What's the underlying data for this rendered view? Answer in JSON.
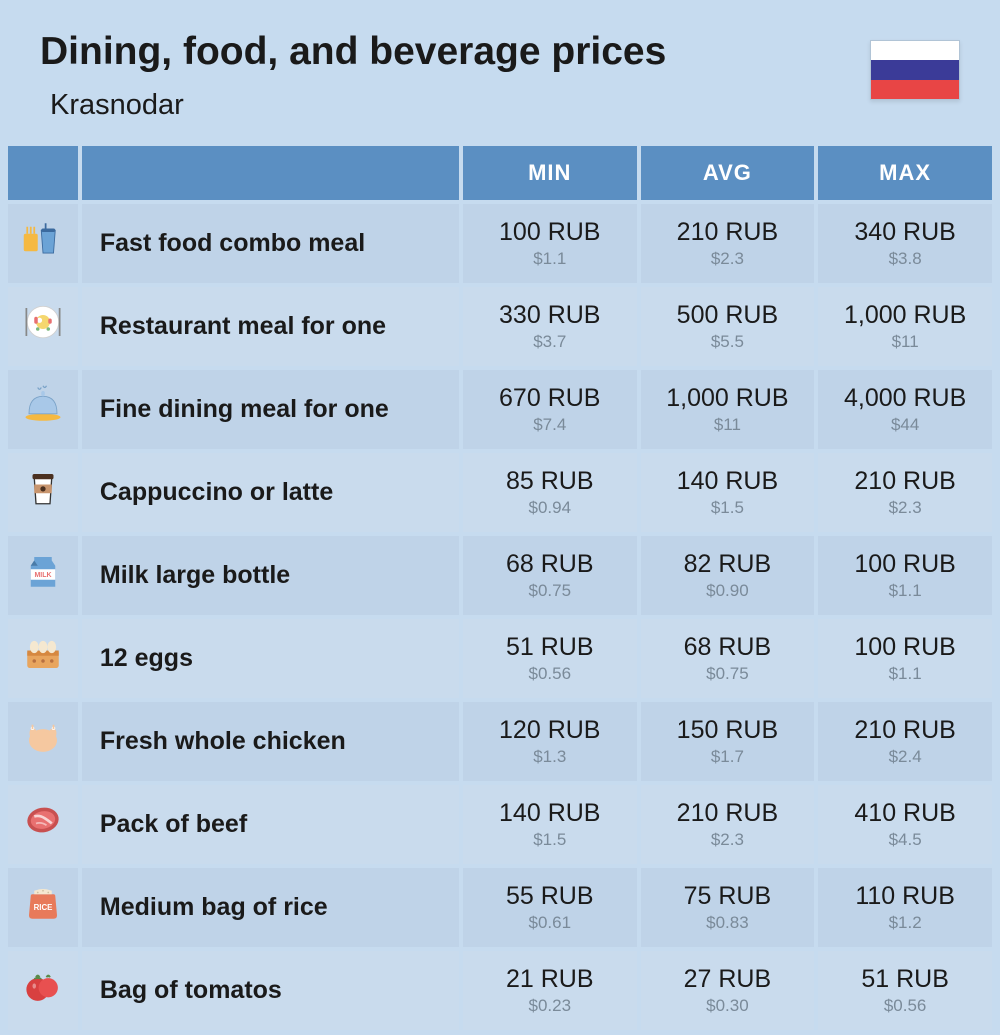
{
  "header": {
    "title": "Dining, food, and beverage prices",
    "subtitle": "Krasnodar",
    "flag_colors": [
      "#ffffff",
      "#3b3b98",
      "#e84545"
    ]
  },
  "table": {
    "columns": [
      "",
      "",
      "MIN",
      "AVG",
      "MAX"
    ],
    "header_bg": "#5b8fc2",
    "header_text_color": "#ffffff",
    "row_odd_bg": "#bfd3e8",
    "row_even_bg": "#c9dbed",
    "price_main_color": "#1a1a1a",
    "price_sub_color": "#7a8a99",
    "rows": [
      {
        "icon": "fastfood",
        "label": "Fast food combo meal",
        "min": {
          "rub": "100 RUB",
          "usd": "$1.1"
        },
        "avg": {
          "rub": "210 RUB",
          "usd": "$2.3"
        },
        "max": {
          "rub": "340 RUB",
          "usd": "$3.8"
        }
      },
      {
        "icon": "restaurant",
        "label": "Restaurant meal for one",
        "min": {
          "rub": "330 RUB",
          "usd": "$3.7"
        },
        "avg": {
          "rub": "500 RUB",
          "usd": "$5.5"
        },
        "max": {
          "rub": "1,000 RUB",
          "usd": "$11"
        }
      },
      {
        "icon": "finedining",
        "label": "Fine dining meal for one",
        "min": {
          "rub": "670 RUB",
          "usd": "$7.4"
        },
        "avg": {
          "rub": "1,000 RUB",
          "usd": "$11"
        },
        "max": {
          "rub": "4,000 RUB",
          "usd": "$44"
        }
      },
      {
        "icon": "coffee",
        "label": "Cappuccino or latte",
        "min": {
          "rub": "85 RUB",
          "usd": "$0.94"
        },
        "avg": {
          "rub": "140 RUB",
          "usd": "$1.5"
        },
        "max": {
          "rub": "210 RUB",
          "usd": "$2.3"
        }
      },
      {
        "icon": "milk",
        "label": "Milk large bottle",
        "min": {
          "rub": "68 RUB",
          "usd": "$0.75"
        },
        "avg": {
          "rub": "82 RUB",
          "usd": "$0.90"
        },
        "max": {
          "rub": "100 RUB",
          "usd": "$1.1"
        }
      },
      {
        "icon": "eggs",
        "label": "12 eggs",
        "min": {
          "rub": "51 RUB",
          "usd": "$0.56"
        },
        "avg": {
          "rub": "68 RUB",
          "usd": "$0.75"
        },
        "max": {
          "rub": "100 RUB",
          "usd": "$1.1"
        }
      },
      {
        "icon": "chicken",
        "label": "Fresh whole chicken",
        "min": {
          "rub": "120 RUB",
          "usd": "$1.3"
        },
        "avg": {
          "rub": "150 RUB",
          "usd": "$1.7"
        },
        "max": {
          "rub": "210 RUB",
          "usd": "$2.4"
        }
      },
      {
        "icon": "beef",
        "label": "Pack of beef",
        "min": {
          "rub": "140 RUB",
          "usd": "$1.5"
        },
        "avg": {
          "rub": "210 RUB",
          "usd": "$2.3"
        },
        "max": {
          "rub": "410 RUB",
          "usd": "$4.5"
        }
      },
      {
        "icon": "rice",
        "label": "Medium bag of rice",
        "min": {
          "rub": "55 RUB",
          "usd": "$0.61"
        },
        "avg": {
          "rub": "75 RUB",
          "usd": "$0.83"
        },
        "max": {
          "rub": "110 RUB",
          "usd": "$1.2"
        }
      },
      {
        "icon": "tomato",
        "label": "Bag of tomatos",
        "min": {
          "rub": "21 RUB",
          "usd": "$0.23"
        },
        "avg": {
          "rub": "27 RUB",
          "usd": "$0.30"
        },
        "max": {
          "rub": "51 RUB",
          "usd": "$0.56"
        }
      }
    ]
  },
  "icons": {
    "fastfood": "<svg viewBox='0 0 48 48'><rect x='2' y='18' width='16' height='20' rx='2' fill='#f5b942'/><rect x='5' y='10' width='2' height='8' fill='#f5b942'/><rect x='9' y='10' width='2' height='8' fill='#f5b942'/><rect x='13' y='10' width='2' height='8' fill='#f5b942'/><path d='M22 14 L38 14 L36 40 L24 40 Z' fill='#6ba3d6' stroke='#3b6a9e' stroke-width='1'/><rect x='26' y='6' width='2' height='8' fill='#3b6a9e'/><rect x='22' y='12' width='16' height='4' rx='2' fill='#3b6a9e'/></svg>",
    "restaurant": "<svg viewBox='0 0 48 48'><circle cx='24' cy='24' r='18' fill='#ffffff' stroke='#d0d0d0' stroke-width='1'/><circle cx='24' cy='24' r='8' fill='#f5d76e'/><circle cx='20' cy='22' r='3' fill='#ffffff'/><rect x='14' y='18' width='4' height='8' rx='2' fill='#e87070'/><rect x='30' y='20' width='4' height='6' rx='2' fill='#e87070'/><circle cx='18' cy='32' r='2' fill='#7ab87a'/><circle cx='30' cy='32' r='2' fill='#7ab87a'/><rect x='4' y='8' width='2' height='32' fill='#888'/><rect x='42' y='8' width='2' height='32' fill='#888'/></svg>",
    "finedining": "<svg viewBox='0 0 48 48'><ellipse cx='24' cy='38' rx='20' ry='4' fill='#f5b942'/><path d='M8 34 Q8 14 24 14 Q40 14 40 34 Z' fill='#a8c8e8' stroke='#7ba3c8' stroke-width='1'/><rect x='22' y='8' width='4' height='6' rx='2' fill='#a8c8e8'/><path d='M18 4 Q20 8 22 4' stroke='#7ba3c8' stroke-width='1.5' fill='none'/><path d='M24 2 Q26 6 28 2' stroke='#7ba3c8' stroke-width='1.5' fill='none'/></svg>",
    "coffee": "<svg viewBox='0 0 48 48'><path d='M14 12 L34 12 L32 42 L16 42 Z' fill='#ffffff' stroke='#333' stroke-width='1.5'/><rect x='12' y='8' width='24' height='6' rx='2' fill='#4a3020'/><rect x='14' y='20' width='20' height='10' fill='#c8956e'/><circle cx='24' cy='25' r='3' fill='#4a3020'/></svg>",
    "milk": "<svg viewBox='0 0 48 48'><path d='M14 12 L14 8 L34 8 L34 12 L38 18 L38 42 L10 42 L10 18 Z' fill='#6ba3d6'/><rect x='10' y='22' width='28' height='12' fill='#ffffff'/><text x='24' y='31' font-size='8' fill='#e87070' text-anchor='middle' font-weight='bold'>MILK</text><path d='M14 12 L10 18 L18 18 Z' fill='#4a7ba8'/></svg>",
    "eggs": "<svg viewBox='0 0 48 48'><rect x='6' y='20' width='36' height='20' rx='3' fill='#e8a55e'/><rect x='6' y='20' width='36' height='6' fill='#d68840'/><ellipse cx='14' cy='16' rx='5' ry='7' fill='#f5e8d0'/><ellipse cx='24' cy='16' rx='5' ry='7' fill='#f5e8d0'/><ellipse cx='34' cy='16' rx='5' ry='7' fill='#f5e8d0'/><circle cx='14' cy='32' r='2' fill='#b87040'/><circle cx='24' cy='32' r='2' fill='#b87040'/><circle cx='34' cy='32' r='2' fill='#b87040'/></svg>",
    "chicken": "<svg viewBox='0 0 48 48'><ellipse cx='24' cy='28' rx='16' ry='13' fill='#f5c8a0'/><ellipse cx='14' cy='22' rx='5' ry='8' fill='#f5c8a0' transform='rotate(-20 14 22)'/><ellipse cx='34' cy='22' rx='5' ry='8' fill='#f5c8a0' transform='rotate(20 34 22)'/><circle cx='12' cy='14' r='2' fill='#ffffff'/><circle cx='36' cy='14' r='2' fill='#ffffff'/><rect x='11' y='10' width='2' height='5' fill='#f5c8a0'/><rect x='35' y='10' width='2' height='5' fill='#f5c8a0'/></svg>",
    "beef": "<svg viewBox='0 0 48 48'><ellipse cx='24' cy='24' rx='18' ry='14' fill='#c85050' transform='rotate(-10 24 24)'/><ellipse cx='24' cy='24' rx='14' ry='10' fill='#e87070' transform='rotate(-10 24 24)'/><path d='M14 20 Q20 18 26 22 Q32 26 34 28' stroke='#ffffff' stroke-width='3' fill='none' opacity='0.7'/><path d='M16 28 Q22 26 28 30' stroke='#ffffff' stroke-width='2' fill='none' opacity='0.5'/></svg>",
    "rice": "<svg viewBox='0 0 48 48'><path d='M12 14 Q10 14 10 16 L8 38 Q8 42 12 42 L36 42 Q40 42 40 38 L38 16 Q38 14 36 14 Z' fill='#e87a5a'/><path d='M14 10 Q24 6 34 10 L34 14 L14 14 Z' fill='#f5e8d0'/><text x='24' y='32' font-size='9' fill='#ffffff' text-anchor='middle' font-weight='bold'>RICE</text><circle cx='18' cy='12' r='1' fill='#d0c0a0'/><circle cx='24' cy='10' r='1' fill='#d0c0a0'/><circle cx='30' cy='12' r='1' fill='#d0c0a0'/></svg>",
    "tomato": "<svg viewBox='0 0 48 48'><circle cx='18' cy='28' r='13' fill='#d84040'/><circle cx='30' cy='26' r='11' fill='#e85050'/><path d='M16 14 Q18 10 20 14 M14 16 L18 14 L22 16' stroke='#5a8a4a' stroke-width='2' fill='#5a8a4a'/><path d='M28 14 Q30 10 32 14' stroke='#5a8a4a' stroke-width='2' fill='#5a8a4a'/><ellipse cx='14' cy='24' rx='2' ry='3' fill='#ffffff' opacity='0.4'/></svg>"
  }
}
